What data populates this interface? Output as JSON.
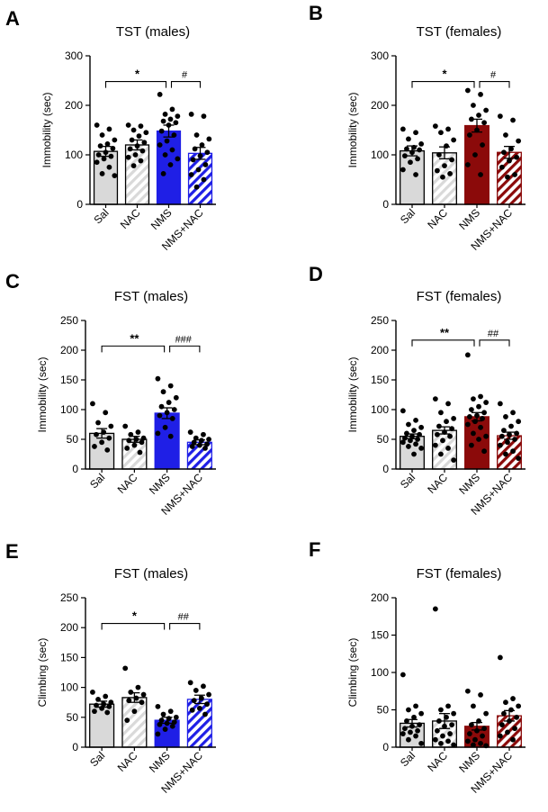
{
  "colors": {
    "sal_fill": "#d9d9d9",
    "males_nms": "#1f1fe6",
    "females_nms": "#8b0a0a",
    "axis": "#000000",
    "dot": "#000000"
  },
  "chart_data": [
    {
      "letter": "A",
      "type": "bar",
      "title": "TST (males)",
      "ylabel": "Immobility (sec)",
      "categories": [
        "Sal",
        "NAC",
        "NMS",
        "NMS+NAC"
      ],
      "yticks": [
        0,
        100,
        200,
        300
      ],
      "ylim": [
        0,
        300
      ],
      "sex": "males",
      "means": [
        107,
        120,
        148,
        103
      ],
      "sem": [
        10,
        10,
        12,
        12
      ],
      "points": [
        [
          160,
          152,
          140,
          130,
          122,
          118,
          113,
          105,
          100,
          97,
          92,
          85,
          75,
          62,
          58
        ],
        [
          160,
          158,
          150,
          145,
          138,
          130,
          125,
          118,
          112,
          108,
          100,
          95,
          88,
          78
        ],
        [
          222,
          192,
          182,
          178,
          172,
          168,
          165,
          160,
          148,
          140,
          128,
          120,
          110,
          100,
          92,
          80,
          62
        ],
        [
          182,
          178,
          140,
          132,
          120,
          112,
          105,
          98,
          90,
          80,
          70,
          60,
          50,
          35
        ]
      ],
      "comparisons": [
        {
          "from": 0,
          "to": 2,
          "label": "*",
          "y": 248
        },
        {
          "from": 2,
          "to": 3,
          "label": "#",
          "y": 248
        }
      ]
    },
    {
      "letter": "B",
      "type": "bar",
      "title": "TST (females)",
      "ylabel": "Immobility (sec)",
      "categories": [
        "Sal",
        "NAC",
        "NMS",
        "NMS+NAC"
      ],
      "yticks": [
        0,
        100,
        200,
        300
      ],
      "ylim": [
        0,
        300
      ],
      "sex": "females",
      "means": [
        108,
        104,
        159,
        105
      ],
      "sem": [
        10,
        12,
        13,
        12
      ],
      "points": [
        [
          152,
          145,
          132,
          122,
          115,
          112,
          110,
          105,
          98,
          92,
          85,
          70,
          60
        ],
        [
          158,
          152,
          145,
          130,
          118,
          100,
          90,
          78,
          68,
          62,
          55
        ],
        [
          230,
          222,
          200,
          190,
          180,
          172,
          165,
          150,
          140,
          120,
          100,
          80,
          60
        ],
        [
          178,
          170,
          140,
          128,
          112,
          105,
          95,
          88,
          75,
          60,
          55
        ]
      ],
      "comparisons": [
        {
          "from": 0,
          "to": 2,
          "label": "*",
          "y": 248
        },
        {
          "from": 2,
          "to": 3,
          "label": "#",
          "y": 248
        }
      ]
    },
    {
      "letter": "C",
      "type": "bar",
      "title": "FST (males)",
      "ylabel": "Immobility (sec)",
      "categories": [
        "Sal",
        "NAC",
        "NMS",
        "NMS+NAC"
      ],
      "yticks": [
        0,
        50,
        100,
        150,
        200,
        250
      ],
      "ylim": [
        0,
        250
      ],
      "sex": "males",
      "means": [
        60,
        50,
        94,
        45
      ],
      "sem": [
        8,
        5,
        9,
        4
      ],
      "points": [
        [
          110,
          95,
          78,
          72,
          62,
          58,
          52,
          45,
          38,
          32
        ],
        [
          72,
          62,
          58,
          52,
          50,
          48,
          45,
          40,
          35,
          28
        ],
        [
          152,
          140,
          130,
          120,
          112,
          105,
          100,
          95,
          90,
          85,
          70,
          60,
          55
        ],
        [
          62,
          58,
          52,
          50,
          48,
          45,
          42,
          40,
          38,
          35
        ]
      ],
      "comparisons": [
        {
          "from": 0,
          "to": 2,
          "label": "**",
          "y": 207
        },
        {
          "from": 2,
          "to": 3,
          "label": "###",
          "y": 207
        }
      ]
    },
    {
      "letter": "D",
      "type": "bar",
      "title": "FST (females)",
      "ylabel": "Immobility (sec)",
      "categories": [
        "Sal",
        "NAC",
        "NMS",
        "NMS+NAC"
      ],
      "yticks": [
        0,
        50,
        100,
        150,
        200,
        250
      ],
      "ylim": [
        0,
        250
      ],
      "sex": "females",
      "means": [
        55,
        65,
        88,
        56
      ],
      "sem": [
        4,
        6,
        7,
        6
      ],
      "points": [
        [
          98,
          82,
          75,
          70,
          65,
          60,
          58,
          55,
          52,
          50,
          48,
          45,
          42,
          38,
          35,
          25
        ],
        [
          118,
          110,
          95,
          85,
          80,
          72,
          68,
          62,
          58,
          55,
          48,
          40,
          35,
          25,
          15
        ],
        [
          192,
          122,
          118,
          112,
          105,
          100,
          95,
          90,
          88,
          85,
          80,
          75,
          70,
          60,
          55,
          50,
          40,
          30
        ],
        [
          110,
          95,
          88,
          80,
          72,
          65,
          60,
          58,
          55,
          50,
          45,
          40,
          30,
          25,
          18
        ]
      ],
      "comparisons": [
        {
          "from": 0,
          "to": 2,
          "label": "**",
          "y": 217
        },
        {
          "from": 2,
          "to": 3,
          "label": "##",
          "y": 217
        }
      ]
    },
    {
      "letter": "E",
      "type": "bar",
      "title": "FST (males)",
      "ylabel": "Climbing (sec)",
      "categories": [
        "Sal",
        "NAC",
        "NMS",
        "NMS+NAC"
      ],
      "yticks": [
        0,
        50,
        100,
        150,
        200,
        250
      ],
      "ylim": [
        0,
        250
      ],
      "sex": "males",
      "means": [
        72,
        83,
        45,
        80
      ],
      "sem": [
        5,
        8,
        5,
        7
      ],
      "points": [
        [
          92,
          85,
          80,
          75,
          72,
          70,
          68,
          65,
          60,
          58
        ],
        [
          132,
          100,
          92,
          88,
          82,
          78,
          75,
          60,
          45
        ],
        [
          68,
          60,
          55,
          50,
          48,
          45,
          42,
          40,
          38,
          35,
          30,
          22
        ],
        [
          108,
          102,
          95,
          88,
          82,
          78,
          72,
          65,
          62,
          55
        ]
      ],
      "comparisons": [
        {
          "from": 0,
          "to": 2,
          "label": "*",
          "y": 207
        },
        {
          "from": 2,
          "to": 3,
          "label": "##",
          "y": 207
        }
      ]
    },
    {
      "letter": "F",
      "type": "bar",
      "title": "FST (females)",
      "ylabel": "Climbing (sec)",
      "categories": [
        "Sal",
        "NAC",
        "NMS",
        "NMS+NAC"
      ],
      "yticks": [
        0,
        50,
        100,
        150,
        200
      ],
      "ylim": [
        0,
        200
      ],
      "sex": "females",
      "means": [
        32,
        35,
        28,
        42
      ],
      "sem": [
        5,
        10,
        5,
        7
      ],
      "points": [
        [
          97,
          55,
          50,
          45,
          40,
          35,
          30,
          28,
          25,
          22,
          20,
          18,
          15,
          10,
          5
        ],
        [
          185,
          55,
          50,
          45,
          40,
          35,
          30,
          28,
          22,
          18,
          15,
          10,
          8,
          5,
          3
        ],
        [
          75,
          70,
          55,
          45,
          35,
          30,
          25,
          22,
          18,
          15,
          10,
          8,
          5,
          3,
          2
        ],
        [
          120,
          65,
          60,
          55,
          50,
          45,
          40,
          35,
          30,
          25,
          20,
          15,
          10
        ]
      ],
      "comparisons": []
    }
  ]
}
